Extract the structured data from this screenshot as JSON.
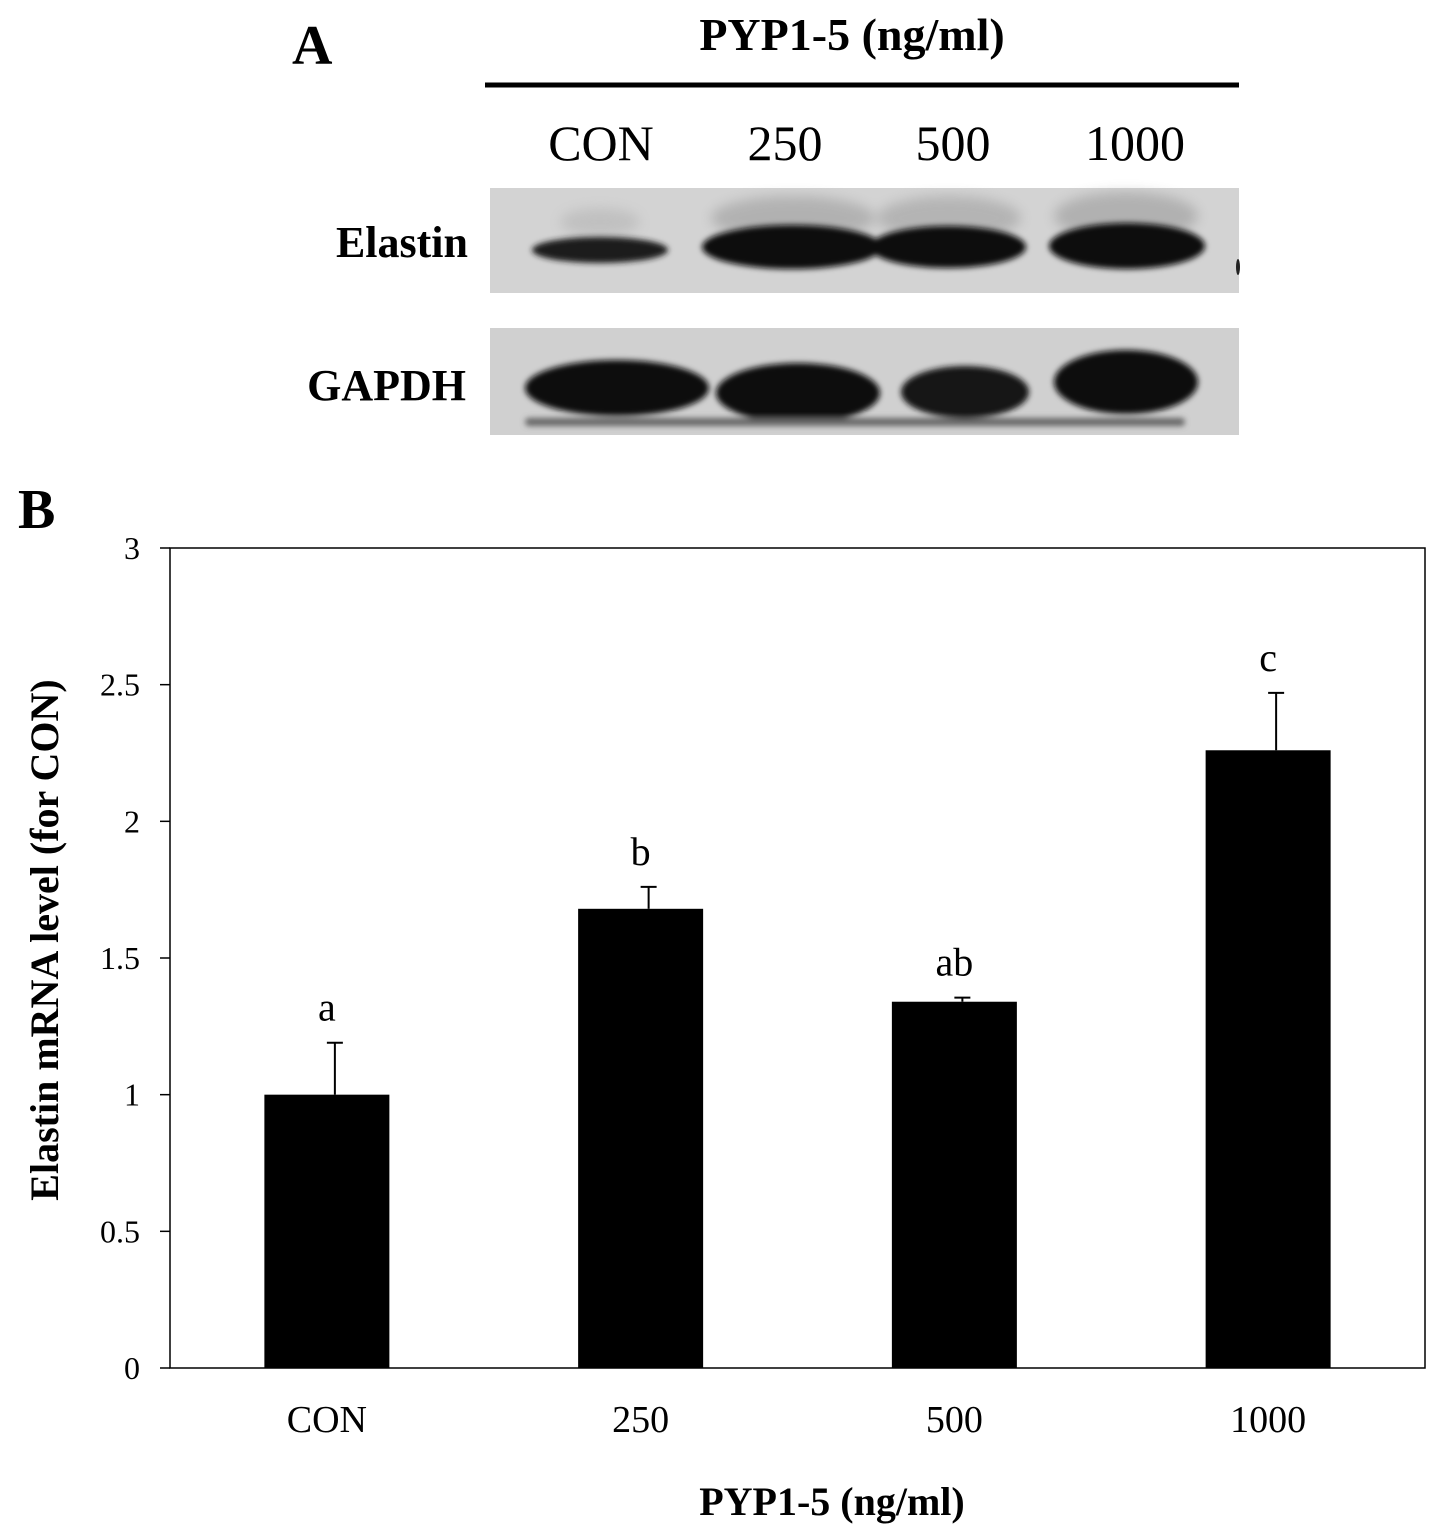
{
  "panel_a": {
    "letter": "A",
    "header": "PYP1-5 (ng/ml)",
    "lanes": [
      "CON",
      "250",
      "500",
      "1000"
    ],
    "rows": [
      {
        "label": "Elastin",
        "band_intensity": [
          0.55,
          1.0,
          0.95,
          1.0
        ]
      },
      {
        "label": "GAPDH",
        "band_intensity": [
          1.0,
          1.0,
          0.95,
          1.0
        ]
      }
    ]
  },
  "panel_b": {
    "letter": "B"
  },
  "chart_data": {
    "type": "bar",
    "title": "",
    "xlabel": "PYP1-5 (ng/ml)",
    "ylabel": "Elastin mRNA  level  (for CON)",
    "categories": [
      "CON",
      "250",
      "500",
      "1000"
    ],
    "values": [
      1.0,
      1.68,
      1.34,
      2.26
    ],
    "errors": [
      0.19,
      0.08,
      0.015,
      0.21
    ],
    "significance_labels": [
      "a",
      "b",
      "ab",
      "c"
    ],
    "ylim": [
      0,
      3
    ],
    "yticks": [
      "0",
      "0.5",
      "1",
      "1.5",
      "2",
      "2.5",
      "3"
    ],
    "grid": false,
    "legend": "none",
    "bar_color": "#000000"
  }
}
